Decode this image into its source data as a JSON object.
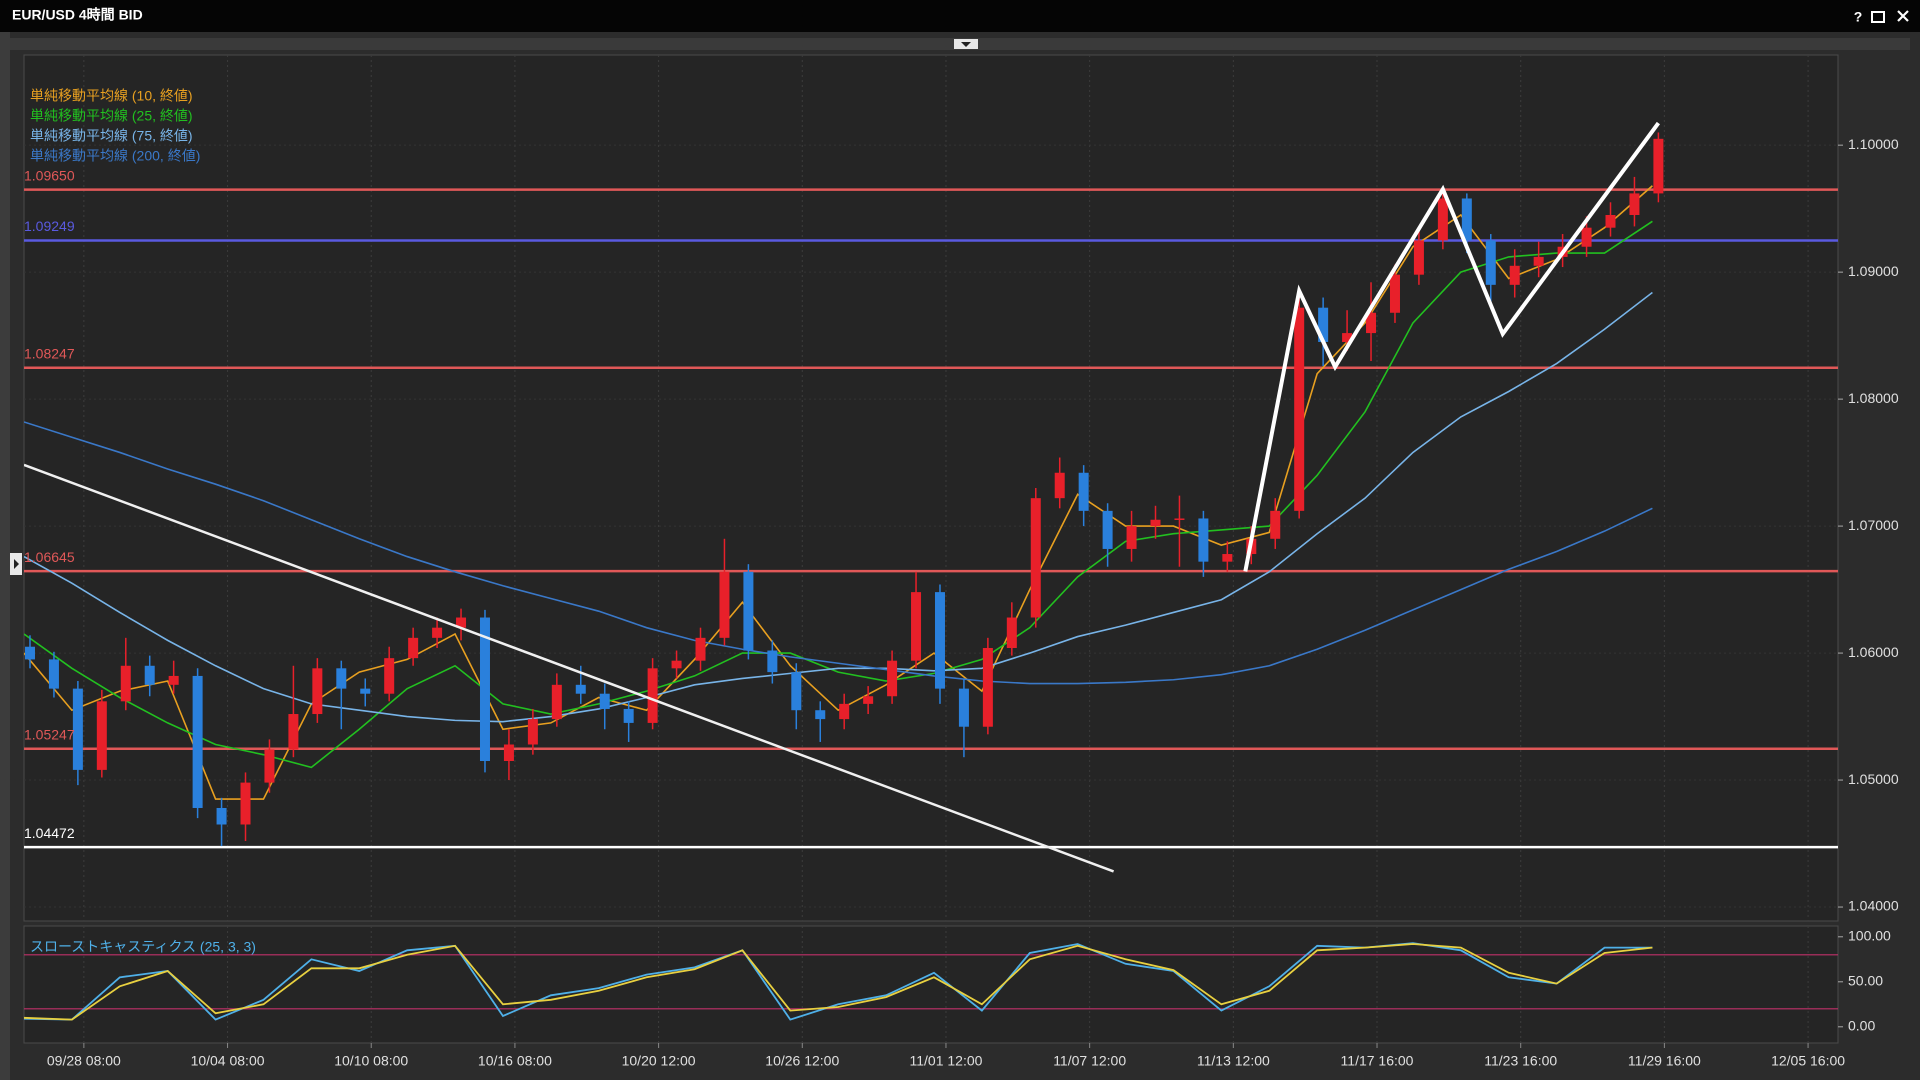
{
  "window": {
    "help": "?"
  },
  "chart_data": [
    {
      "type": "candlestick",
      "title": "EUR/USD 4時間 BID",
      "x": [
        1,
        5,
        9,
        13,
        17,
        21,
        25,
        29,
        33,
        37,
        41,
        45,
        49,
        53,
        57,
        61,
        65,
        69,
        73,
        77,
        81,
        85,
        89,
        93,
        97,
        101,
        105,
        109,
        113,
        117,
        121,
        125,
        129,
        133,
        137,
        141,
        145,
        149,
        153,
        157,
        161,
        165,
        169,
        173,
        177,
        181,
        185,
        189,
        193,
        197,
        201,
        205,
        209,
        213,
        217,
        221,
        225,
        229,
        233,
        237,
        241,
        245,
        249,
        253,
        257,
        261,
        265,
        269,
        273
      ],
      "open": [
        1.0605,
        1.0595,
        1.0572,
        1.0508,
        1.0562,
        1.059,
        1.0575,
        1.0582,
        1.0478,
        1.0465,
        1.0498,
        1.0524,
        1.0552,
        1.0588,
        1.0572,
        1.0568,
        1.0596,
        1.0612,
        1.062,
        1.0628,
        1.0515,
        1.0528,
        1.0548,
        1.0575,
        1.0568,
        1.0556,
        1.0545,
        1.0588,
        1.0594,
        1.0612,
        1.0664,
        1.0602,
        1.0585,
        1.0555,
        1.0548,
        1.056,
        1.0566,
        1.0594,
        1.0648,
        1.0572,
        1.0542,
        1.0604,
        1.0628,
        1.0722,
        1.0742,
        1.0712,
        1.0682,
        1.07,
        1.0705,
        1.0706,
        1.0672,
        1.0678,
        1.069,
        1.0712,
        1.0872,
        1.0845,
        1.0852,
        1.0868,
        1.0898,
        1.0925,
        1.0958,
        1.0925,
        1.089,
        1.0905,
        1.0912,
        1.092,
        1.0935,
        1.0945,
        1.0962
      ],
      "high": [
        1.0614,
        1.0601,
        1.0578,
        1.0571,
        1.0612,
        1.0598,
        1.0594,
        1.0588,
        1.0486,
        1.0506,
        1.0532,
        1.059,
        1.0596,
        1.0594,
        1.058,
        1.0605,
        1.062,
        1.0628,
        1.0635,
        1.0634,
        1.054,
        1.0556,
        1.0584,
        1.059,
        1.0576,
        1.0562,
        1.0596,
        1.0602,
        1.062,
        1.069,
        1.067,
        1.061,
        1.0592,
        1.0562,
        1.0568,
        1.0574,
        1.0602,
        1.0664,
        1.0654,
        1.058,
        1.0612,
        1.064,
        1.073,
        1.0754,
        1.0748,
        1.0718,
        1.0712,
        1.0716,
        1.0724,
        1.0712,
        1.0688,
        1.07,
        1.0722,
        1.0882,
        1.088,
        1.087,
        1.0892,
        1.0906,
        1.0934,
        1.0966,
        1.0962,
        1.093,
        1.0918,
        1.0924,
        1.093,
        1.0944,
        1.0955,
        1.0975,
        1.101
      ],
      "low": [
        1.0588,
        1.0565,
        1.0496,
        1.0502,
        1.0555,
        1.0566,
        1.0568,
        1.047,
        1.0448,
        1.0452,
        1.049,
        1.0518,
        1.0545,
        1.054,
        1.0558,
        1.0562,
        1.059,
        1.0604,
        1.061,
        1.0506,
        1.05,
        1.052,
        1.0542,
        1.056,
        1.054,
        1.053,
        1.054,
        1.058,
        1.0586,
        1.0606,
        1.0595,
        1.0576,
        1.054,
        1.053,
        1.054,
        1.0552,
        1.056,
        1.0588,
        1.056,
        1.0518,
        1.0536,
        1.0598,
        1.062,
        1.0714,
        1.07,
        1.0668,
        1.0672,
        1.069,
        1.0668,
        1.066,
        1.0664,
        1.067,
        1.0682,
        1.0706,
        1.0826,
        1.0838,
        1.083,
        1.086,
        1.089,
        1.0918,
        1.0915,
        1.0872,
        1.088,
        1.0896,
        1.0904,
        1.0912,
        1.0928,
        1.0936,
        1.0955
      ],
      "close": [
        1.0595,
        1.0572,
        1.0508,
        1.0562,
        1.059,
        1.0575,
        1.0582,
        1.0478,
        1.0465,
        1.0498,
        1.0524,
        1.0552,
        1.0588,
        1.0572,
        1.0568,
        1.0596,
        1.0612,
        1.062,
        1.0628,
        1.0515,
        1.0528,
        1.0548,
        1.0575,
        1.0568,
        1.0556,
        1.0545,
        1.0588,
        1.0594,
        1.0612,
        1.0664,
        1.0602,
        1.0585,
        1.0555,
        1.0548,
        1.056,
        1.0566,
        1.0594,
        1.0648,
        1.0572,
        1.0542,
        1.0604,
        1.0628,
        1.0722,
        1.0742,
        1.0712,
        1.0682,
        1.07,
        1.0705,
        1.0706,
        1.0672,
        1.0678,
        1.069,
        1.0712,
        1.0872,
        1.0845,
        1.0852,
        1.0868,
        1.0898,
        1.0925,
        1.0958,
        1.0925,
        1.089,
        1.0905,
        1.0912,
        1.092,
        1.0935,
        1.0945,
        1.0962,
        1.1005
      ],
      "up_color": "#e8202a",
      "down_color": "#2a80dc",
      "xlim": [
        0,
        303
      ],
      "xticks": [
        {
          "value": 10,
          "label": "09/28 08:00"
        },
        {
          "value": 34,
          "label": "10/04 08:00"
        },
        {
          "value": 58,
          "label": "10/10 08:00"
        },
        {
          "value": 82,
          "label": "10/16 08:00"
        },
        {
          "value": 106,
          "label": "10/20 12:00"
        },
        {
          "value": 130,
          "label": "10/26 12:00"
        },
        {
          "value": 154,
          "label": "11/01 12:00"
        },
        {
          "value": 178,
          "label": "11/07 12:00"
        },
        {
          "value": 202,
          "label": "11/13 12:00"
        },
        {
          "value": 226,
          "label": "11/17 16:00"
        },
        {
          "value": 250,
          "label": "11/23 16:00"
        },
        {
          "value": 274,
          "label": "11/29 16:00"
        },
        {
          "value": 298,
          "label": "12/05 16:00"
        }
      ],
      "ylim": [
        1.0389,
        1.1071
      ],
      "yticks": [
        {
          "value": 1.04,
          "label": "1.04000"
        },
        {
          "value": 1.05,
          "label": "1.05000"
        },
        {
          "value": 1.06,
          "label": "1.06000"
        },
        {
          "value": 1.07,
          "label": "1.07000"
        },
        {
          "value": 1.08,
          "label": "1.08000"
        },
        {
          "value": 1.09,
          "label": "1.09000"
        },
        {
          "value": 1.1,
          "label": "1.10000"
        }
      ],
      "grid": true,
      "series": [
        {
          "name": "単純移動平均線 (10, 終値)",
          "color": "#e8a020",
          "x": [
            0,
            8,
            16,
            24,
            32,
            40,
            48,
            56,
            64,
            72,
            80,
            88,
            96,
            104,
            112,
            120,
            128,
            136,
            144,
            152,
            160,
            168,
            176,
            184,
            192,
            200,
            208,
            216,
            224,
            232,
            240,
            248,
            256,
            264,
            272
          ],
          "values": [
            1.06,
            1.0555,
            1.057,
            1.0578,
            1.0485,
            1.0485,
            1.056,
            1.0585,
            1.0595,
            1.0615,
            1.054,
            1.0545,
            1.0565,
            1.0555,
            1.0595,
            1.064,
            1.059,
            1.0555,
            1.0575,
            1.06,
            1.057,
            1.065,
            1.0725,
            1.07,
            1.07,
            1.0685,
            1.0695,
            1.082,
            1.086,
            1.092,
            1.0945,
            1.0895,
            1.091,
            1.0935,
            1.0968
          ]
        },
        {
          "name": "単純移動平均線 (25, 終値)",
          "color": "#22c020",
          "x": [
            0,
            8,
            16,
            24,
            32,
            40,
            48,
            56,
            64,
            72,
            80,
            88,
            96,
            104,
            112,
            120,
            128,
            136,
            144,
            152,
            160,
            168,
            176,
            184,
            192,
            200,
            208,
            216,
            224,
            232,
            240,
            248,
            256,
            264,
            272
          ],
          "values": [
            1.0615,
            1.0588,
            1.0565,
            1.0545,
            1.0528,
            1.052,
            1.051,
            1.054,
            1.0572,
            1.059,
            1.056,
            1.0552,
            1.056,
            1.057,
            1.0582,
            1.06,
            1.06,
            1.0585,
            1.0578,
            1.0584,
            1.0595,
            1.062,
            1.066,
            1.0688,
            1.0694,
            1.0697,
            1.07,
            1.074,
            1.079,
            1.086,
            1.09,
            1.0912,
            1.0915,
            1.0915,
            1.094
          ]
        },
        {
          "name": "単純移動平均線 (75, 終値)",
          "color": "#78b4e8",
          "x": [
            0,
            8,
            16,
            24,
            32,
            40,
            48,
            56,
            64,
            72,
            80,
            88,
            96,
            104,
            112,
            120,
            128,
            136,
            144,
            152,
            160,
            168,
            176,
            184,
            192,
            200,
            208,
            216,
            224,
            232,
            240,
            248,
            256,
            264,
            272
          ],
          "values": [
            1.0676,
            1.0655,
            1.0632,
            1.061,
            1.059,
            1.0572,
            1.056,
            1.0555,
            1.055,
            1.0547,
            1.0546,
            1.055,
            1.0556,
            1.0565,
            1.0575,
            1.058,
            1.0584,
            1.0588,
            1.0588,
            1.0586,
            1.0588,
            1.06,
            1.0613,
            1.0622,
            1.0632,
            1.0642,
            1.0664,
            1.0694,
            1.0722,
            1.0758,
            1.0786,
            1.0806,
            1.0828,
            1.0855,
            1.0884
          ]
        },
        {
          "name": "単純移動平均線 (200, 終値)",
          "color": "#3a78c8",
          "x": [
            0,
            8,
            16,
            24,
            32,
            40,
            48,
            56,
            64,
            72,
            80,
            88,
            96,
            104,
            112,
            120,
            128,
            136,
            144,
            152,
            160,
            168,
            176,
            184,
            192,
            200,
            208,
            216,
            224,
            232,
            240,
            248,
            256,
            264,
            272
          ],
          "values": [
            1.0782,
            1.077,
            1.0758,
            1.0745,
            1.0733,
            1.072,
            1.0705,
            1.069,
            1.0676,
            1.0664,
            1.0653,
            1.0643,
            1.0633,
            1.062,
            1.061,
            1.0603,
            1.0597,
            1.0592,
            1.0587,
            1.0582,
            1.0578,
            1.0576,
            1.0576,
            1.0577,
            1.0579,
            1.0583,
            1.059,
            1.0603,
            1.0618,
            1.0634,
            1.065,
            1.0666,
            1.068,
            1.0696,
            1.0714
          ]
        }
      ],
      "levels": [
        {
          "value": 1.0965,
          "label": "1.09650",
          "color": "#e05858"
        },
        {
          "value": 1.09249,
          "label": "1.09249",
          "color": "#5a5ae0"
        },
        {
          "value": 1.08247,
          "label": "1.08247",
          "color": "#e05858"
        },
        {
          "value": 1.06645,
          "label": "1.06645",
          "color": "#e05858"
        },
        {
          "value": 1.05247,
          "label": "1.05247",
          "color": "#e05858"
        },
        {
          "value": 1.04472,
          "label": "1.04472",
          "color": "#ffffff"
        }
      ],
      "drawings": [
        {
          "color": "#f0f0f0",
          "x": [
            0,
            182
          ],
          "y": [
            1.07482,
            1.0428
          ]
        },
        {
          "color": "#ffffff",
          "x": [
            204,
            213,
            219,
            237,
            247,
            273
          ],
          "y": [
            1.06643,
            1.08852,
            1.08254,
            1.09653,
            1.08514,
            1.10174
          ]
        }
      ]
    },
    {
      "type": "line",
      "title": "スローストキャスティクス (25, 3, 3)",
      "x": [
        0,
        8,
        16,
        24,
        32,
        40,
        48,
        56,
        64,
        72,
        80,
        88,
        96,
        104,
        112,
        120,
        128,
        136,
        144,
        152,
        160,
        168,
        176,
        184,
        192,
        200,
        208,
        216,
        224,
        232,
        240,
        248,
        256,
        264,
        272
      ],
      "xlim": [
        0,
        303
      ],
      "ylim": [
        -18,
        112
      ],
      "yticks": [
        {
          "value": 0,
          "label": "0.00"
        },
        {
          "value": 50,
          "label": "50.00"
        },
        {
          "value": 100,
          "label": "100.00"
        }
      ],
      "hlines": [
        {
          "value": 80,
          "color": "#c0306a"
        },
        {
          "value": 20,
          "color": "#c0306a"
        }
      ],
      "series": [
        {
          "color": "#4fb0e8",
          "values": [
            9,
            8,
            55,
            62,
            8,
            30,
            75,
            62,
            85,
            90,
            12,
            35,
            43,
            58,
            66,
            85,
            8,
            25,
            35,
            60,
            18,
            82,
            92,
            70,
            62,
            18,
            45,
            90,
            88,
            93,
            85,
            55,
            48,
            88,
            88
          ]
        },
        {
          "color": "#e8d040",
          "values": [
            10,
            8,
            45,
            62,
            15,
            25,
            65,
            65,
            80,
            90,
            25,
            30,
            40,
            55,
            64,
            85,
            18,
            22,
            33,
            55,
            25,
            75,
            90,
            75,
            63,
            25,
            40,
            85,
            88,
            92,
            88,
            60,
            48,
            82,
            88
          ]
        }
      ]
    }
  ]
}
